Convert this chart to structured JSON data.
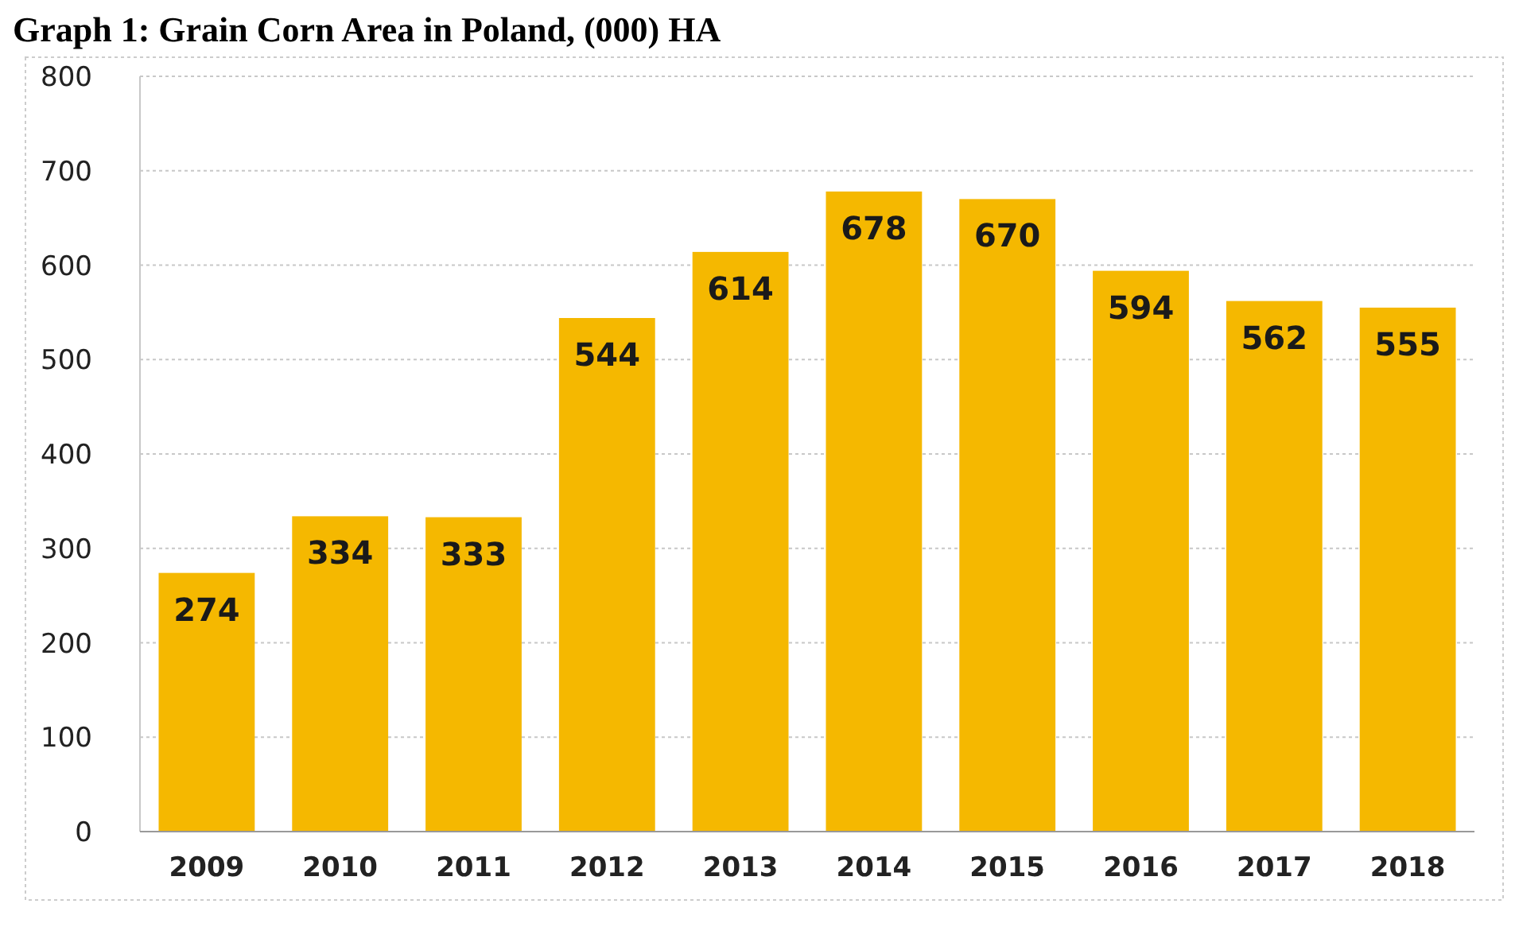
{
  "chart_data": {
    "type": "bar",
    "title": "Graph 1: Grain Corn Area in Poland, (000) HA",
    "categories": [
      "2009",
      "2010",
      "2011",
      "2012",
      "2013",
      "2014",
      "2015",
      "2016",
      "2017",
      "2018"
    ],
    "values": [
      274,
      334,
      333,
      544,
      614,
      678,
      670,
      594,
      562,
      555
    ],
    "color": "#f5b800",
    "ylim": [
      0,
      800
    ],
    "yticks": [
      0,
      100,
      200,
      300,
      400,
      500,
      600,
      700,
      800
    ],
    "grid": "y",
    "data_labels": true
  }
}
